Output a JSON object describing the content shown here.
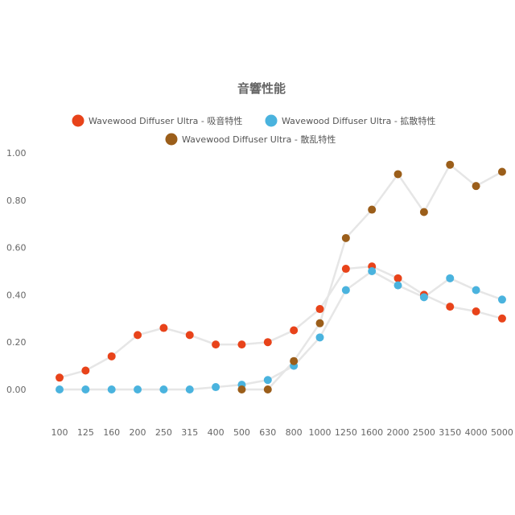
{
  "chart_data": {
    "type": "line",
    "title": "音響性能",
    "categories": [
      "100",
      "125",
      "160",
      "200",
      "250",
      "315",
      "400",
      "500",
      "630",
      "800",
      "1000",
      "1250",
      "1600",
      "2000",
      "2500",
      "3150",
      "4000",
      "5000"
    ],
    "ylim": [
      -0.1,
      1.0
    ],
    "yticks": [
      "0.00",
      "0.20",
      "0.40",
      "0.60",
      "0.80",
      "1.00"
    ],
    "grid": false,
    "legend_position": "top",
    "series": [
      {
        "name": "Wavewood Diffuser Ultra - 吸音特性",
        "color": "#e8431a",
        "values": [
          0.05,
          0.08,
          0.14,
          0.23,
          0.26,
          0.23,
          0.19,
          0.19,
          0.2,
          0.25,
          0.34,
          0.51,
          0.52,
          0.47,
          0.4,
          0.35,
          0.33,
          0.3
        ]
      },
      {
        "name": "Wavewood Diffuser Ultra - 拡散特性",
        "color": "#4ab3de",
        "values": [
          0.0,
          0.0,
          0.0,
          0.0,
          0.0,
          0.0,
          0.01,
          0.02,
          0.04,
          0.1,
          0.22,
          0.42,
          0.5,
          0.44,
          0.39,
          0.47,
          0.42,
          0.38
        ]
      },
      {
        "name": "Wavewood Diffuser Ultra - 散乱特性",
        "color": "#9b5e1a",
        "values": [
          null,
          null,
          null,
          null,
          null,
          null,
          null,
          0.0,
          0.0,
          0.12,
          0.28,
          0.64,
          0.76,
          0.91,
          0.75,
          0.95,
          0.86,
          0.92
        ]
      }
    ]
  }
}
